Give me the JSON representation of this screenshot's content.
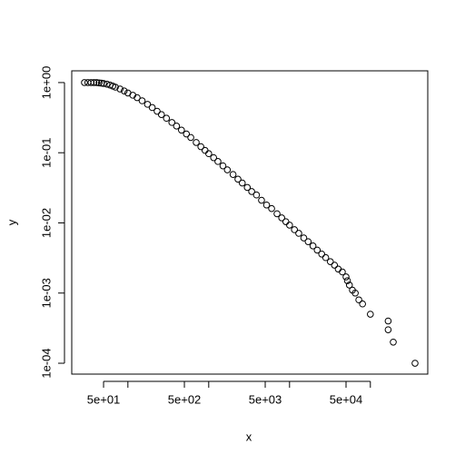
{
  "chart_data": {
    "type": "scatter",
    "xlabel": "x",
    "ylabel": "y",
    "log_x": true,
    "log_y": true,
    "color": "#000000",
    "xlim": [
      20.2,
      513000
    ],
    "ylim": [
      7e-05,
      1.47
    ],
    "xticks": [
      {
        "value": 50,
        "label": "5e+01"
      },
      {
        "value": 500,
        "label": "5e+02"
      },
      {
        "value": 5000,
        "label": "5e+03"
      },
      {
        "value": 50000,
        "label": "5e+04"
      }
    ],
    "xticks_minor": [
      100,
      1000,
      10000,
      100000
    ],
    "yticks": [
      {
        "value": 1,
        "label": "1e+00"
      },
      {
        "value": 0.1,
        "label": "1e-01"
      },
      {
        "value": 0.01,
        "label": "1e-02"
      },
      {
        "value": 0.001,
        "label": "1e-03"
      },
      {
        "value": 0.0001,
        "label": "1e-04"
      }
    ],
    "x": [
      29,
      32,
      35,
      38,
      41,
      44,
      47,
      50,
      55,
      60,
      65,
      70,
      80,
      90,
      100,
      115,
      130,
      150,
      175,
      200,
      230,
      260,
      300,
      350,
      400,
      460,
      530,
      600,
      700,
      800,
      900,
      1000,
      1150,
      1300,
      1500,
      1700,
      2000,
      2300,
      2600,
      3000,
      3400,
      3900,
      4500,
      5200,
      6000,
      7000,
      8000,
      9000,
      10000,
      11500,
      13000,
      15000,
      17000,
      19500,
      22000,
      25000,
      28000,
      32000,
      36000,
      40000,
      45000,
      50000,
      52000,
      55000,
      60000,
      65000,
      72000,
      80000,
      100000,
      166000,
      166000,
      192000,
      357000
    ],
    "values": [
      1,
      1,
      1,
      1,
      1,
      0.99,
      0.98,
      0.97,
      0.95,
      0.92,
      0.89,
      0.86,
      0.81,
      0.76,
      0.71,
      0.66,
      0.61,
      0.55,
      0.49,
      0.44,
      0.39,
      0.35,
      0.31,
      0.27,
      0.24,
      0.21,
      0.185,
      0.165,
      0.14,
      0.122,
      0.108,
      0.097,
      0.085,
      0.075,
      0.065,
      0.057,
      0.049,
      0.042,
      0.037,
      0.032,
      0.028,
      0.025,
      0.021,
      0.018,
      0.016,
      0.0135,
      0.0118,
      0.0104,
      0.0093,
      0.008,
      0.0071,
      0.0061,
      0.0054,
      0.0047,
      0.0041,
      0.0036,
      0.0032,
      0.0028,
      0.0025,
      0.0022,
      0.002,
      0.0017,
      0.0015,
      0.0013,
      0.0011,
      0.001,
      0.0008,
      0.0007,
      0.0005,
      0.0004,
      0.0003,
      0.0002,
      0.0001
    ]
  }
}
